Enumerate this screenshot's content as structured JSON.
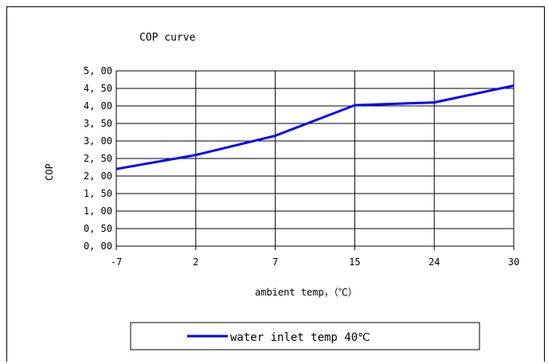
{
  "chart_data": {
    "type": "line",
    "title": "COP curve",
    "xlabel": "ambient temp，（℃）",
    "ylabel": "COP",
    "categories": [
      "-7",
      "2",
      "7",
      "15",
      "24",
      "30"
    ],
    "ylim": [
      0,
      5
    ],
    "yticks": [
      "0, 00",
      "0, 50",
      "1, 00",
      "1, 50",
      "2, 00",
      "2, 50",
      "3, 00",
      "3, 50",
      "4, 00",
      "4, 50",
      "5, 00"
    ],
    "grid": true,
    "legend_position": "bottom",
    "series": [
      {
        "name": "water inlet temp 40℃",
        "color": "#0000ff",
        "values": [
          2.2,
          2.6,
          3.15,
          4.02,
          4.1,
          4.58
        ]
      }
    ]
  }
}
